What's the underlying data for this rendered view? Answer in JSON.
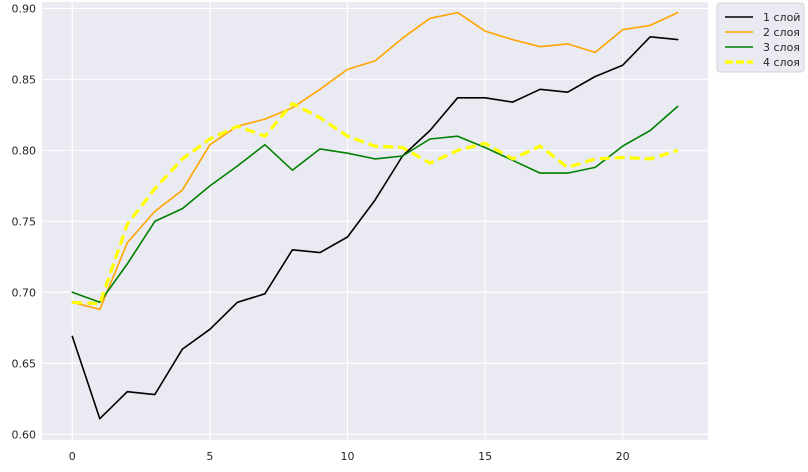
{
  "chart_data": {
    "type": "line",
    "title": "",
    "xlabel": "",
    "ylabel": "",
    "xlim": [
      -1.1,
      23.1
    ],
    "ylim": [
      0.596,
      0.9045
    ],
    "xticks": [
      0,
      5,
      10,
      15,
      20
    ],
    "yticks": [
      0.6,
      0.65,
      0.7,
      0.75,
      0.8,
      0.85,
      0.9
    ],
    "grid": true,
    "legend_position": "outside-top-right",
    "x": [
      0,
      1,
      2,
      3,
      4,
      5,
      6,
      7,
      8,
      9,
      10,
      11,
      12,
      13,
      14,
      15,
      16,
      17,
      18,
      19,
      20,
      21,
      22
    ],
    "series": [
      {
        "name": "1 слой",
        "color": "#000000",
        "style": "solid",
        "values": [
          0.669,
          0.611,
          0.63,
          0.628,
          0.66,
          0.674,
          0.693,
          0.699,
          0.73,
          0.728,
          0.739,
          0.765,
          0.796,
          0.814,
          0.837,
          0.837,
          0.834,
          0.843,
          0.841,
          0.852,
          0.86,
          0.88,
          0.878
        ]
      },
      {
        "name": "2 слоя",
        "color": "#ffa500",
        "style": "solid",
        "values": [
          0.693,
          0.688,
          0.735,
          0.757,
          0.772,
          0.804,
          0.817,
          0.822,
          0.83,
          0.843,
          0.857,
          0.863,
          0.879,
          0.893,
          0.897,
          0.884,
          0.878,
          0.873,
          0.875,
          0.869,
          0.885,
          0.888,
          0.897
        ]
      },
      {
        "name": "3 слоя",
        "color": "#008000",
        "style": "solid",
        "values": [
          0.7,
          0.693,
          0.72,
          0.75,
          0.759,
          0.775,
          0.789,
          0.804,
          0.786,
          0.801,
          0.798,
          0.794,
          0.796,
          0.808,
          0.81,
          0.802,
          0.793,
          0.784,
          0.784,
          0.788,
          0.803,
          0.814,
          0.831
        ]
      },
      {
        "name": "4 слоя",
        "color": "#ffff00",
        "style": "dashed",
        "values": [
          0.693,
          0.692,
          0.748,
          0.773,
          0.794,
          0.808,
          0.817,
          0.81,
          0.833,
          0.823,
          0.81,
          0.803,
          0.802,
          0.791,
          0.8,
          0.805,
          0.794,
          0.803,
          0.788,
          0.794,
          0.795,
          0.794,
          0.8
        ]
      }
    ]
  }
}
